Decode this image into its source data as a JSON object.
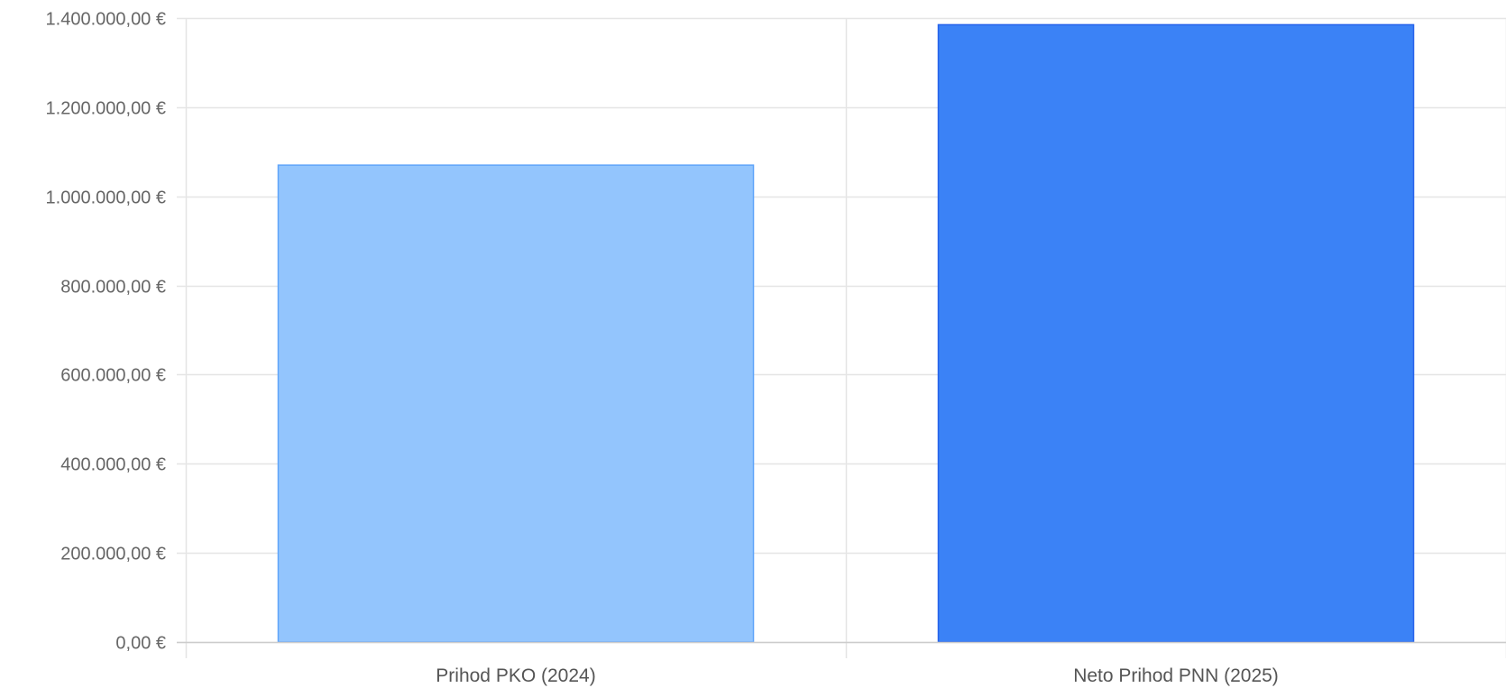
{
  "chart_data": {
    "type": "bar",
    "categories": [
      "Prihod PKO (2024)",
      "Neto Prihod PNN (2025)"
    ],
    "values": [
      1070000,
      1385000
    ],
    "colors": [
      "#93c5fd",
      "#3b82f6"
    ],
    "border_colors": [
      "#60a5fa",
      "#2563eb"
    ],
    "ylim": [
      0,
      1400000
    ],
    "y_ticks": [
      0,
      200000,
      400000,
      600000,
      800000,
      1000000,
      1200000,
      1400000
    ],
    "y_tick_labels": [
      "0,00 €",
      "200.000,00 €",
      "400.000,00 €",
      "600.000,00 €",
      "800.000,00 €",
      "1.000.000,00 €",
      "1.200.000,00 €",
      "1.400.000,00 €"
    ],
    "grid": true,
    "grid_color": "#e5e5e5",
    "axis_color": "#cccccc",
    "legend": false
  }
}
